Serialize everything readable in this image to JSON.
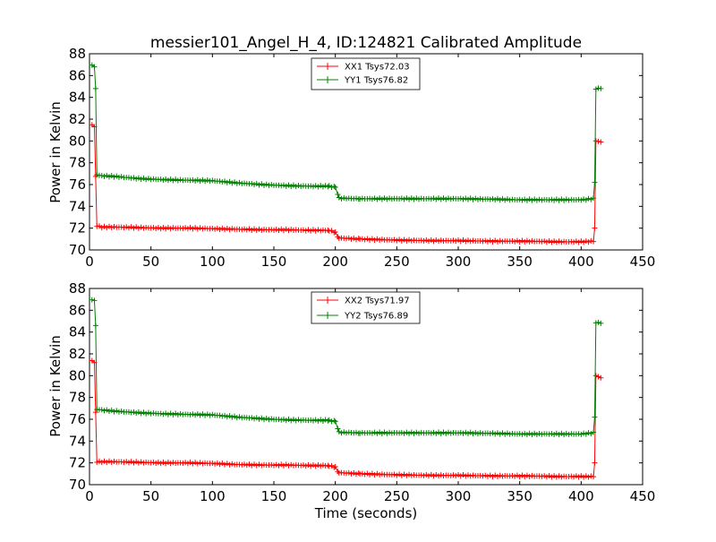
{
  "chart_data": [
    {
      "type": "line",
      "title": "messier101_Angel_H_4, ID:124821 Calibrated Amplitude",
      "xlabel": "",
      "ylabel": "Power in Kelvin",
      "xlim": [
        0,
        450
      ],
      "ylim": [
        70,
        88
      ],
      "x_ticks": [
        "0",
        "50",
        "100",
        "150",
        "200",
        "250",
        "300",
        "350",
        "400",
        "450"
      ],
      "y_ticks": [
        "70",
        "72",
        "74",
        "76",
        "78",
        "80",
        "82",
        "84",
        "86",
        "88"
      ],
      "grid": false,
      "legend_position": "upper-center",
      "series": [
        {
          "name": "XX1 Tsys72.03",
          "color": "#ff0000",
          "points": [
            [
              2,
              81.5
            ],
            [
              4,
              81.3
            ],
            [
              6,
              72.2
            ],
            [
              10,
              72.1
            ],
            [
              20,
              72.1
            ],
            [
              40,
              72.05
            ],
            [
              60,
              72.0
            ],
            [
              80,
              72.0
            ],
            [
              100,
              71.95
            ],
            [
              120,
              71.9
            ],
            [
              140,
              71.85
            ],
            [
              160,
              71.85
            ],
            [
              180,
              71.8
            ],
            [
              195,
              71.8
            ],
            [
              200,
              71.6
            ],
            [
              203,
              71.1
            ],
            [
              220,
              71.0
            ],
            [
              250,
              70.9
            ],
            [
              280,
              70.85
            ],
            [
              300,
              70.85
            ],
            [
              330,
              70.8
            ],
            [
              360,
              70.8
            ],
            [
              380,
              70.75
            ],
            [
              400,
              70.75
            ],
            [
              410,
              70.8
            ],
            [
              411,
              72.0
            ],
            [
              412,
              80.0
            ],
            [
              416,
              79.9
            ]
          ]
        },
        {
          "name": "YY1 Tsys76.82",
          "color": "#008000",
          "points": [
            [
              2,
              87.0
            ],
            [
              4,
              86.8
            ],
            [
              5,
              84.8
            ],
            [
              6,
              76.9
            ],
            [
              10,
              76.8
            ],
            [
              20,
              76.75
            ],
            [
              40,
              76.55
            ],
            [
              60,
              76.45
            ],
            [
              80,
              76.4
            ],
            [
              100,
              76.35
            ],
            [
              120,
              76.15
            ],
            [
              140,
              76.0
            ],
            [
              160,
              75.9
            ],
            [
              180,
              75.85
            ],
            [
              195,
              75.85
            ],
            [
              200,
              75.75
            ],
            [
              203,
              74.75
            ],
            [
              220,
              74.7
            ],
            [
              250,
              74.7
            ],
            [
              280,
              74.7
            ],
            [
              300,
              74.7
            ],
            [
              330,
              74.65
            ],
            [
              350,
              74.6
            ],
            [
              380,
              74.6
            ],
            [
              400,
              74.6
            ],
            [
              410,
              74.7
            ],
            [
              411,
              76.2
            ],
            [
              412,
              84.8
            ],
            [
              416,
              84.8
            ]
          ]
        }
      ]
    },
    {
      "type": "line",
      "title": "",
      "xlabel": "Time (seconds)",
      "ylabel": "Power in Kelvin",
      "xlim": [
        0,
        450
      ],
      "ylim": [
        70,
        88
      ],
      "x_ticks": [
        "0",
        "50",
        "100",
        "150",
        "200",
        "250",
        "300",
        "350",
        "400",
        "450"
      ],
      "y_ticks": [
        "70",
        "72",
        "74",
        "76",
        "78",
        "80",
        "82",
        "84",
        "86",
        "88"
      ],
      "grid": false,
      "legend_position": "upper-center",
      "series": [
        {
          "name": "XX2 Tsys71.97",
          "color": "#ff0000",
          "points": [
            [
              2,
              81.4
            ],
            [
              4,
              81.2
            ],
            [
              6,
              72.1
            ],
            [
              10,
              72.1
            ],
            [
              20,
              72.1
            ],
            [
              40,
              72.05
            ],
            [
              60,
              72.0
            ],
            [
              80,
              72.0
            ],
            [
              100,
              71.95
            ],
            [
              120,
              71.85
            ],
            [
              140,
              71.8
            ],
            [
              160,
              71.8
            ],
            [
              180,
              71.75
            ],
            [
              195,
              71.75
            ],
            [
              200,
              71.6
            ],
            [
              203,
              71.1
            ],
            [
              220,
              71.0
            ],
            [
              250,
              70.9
            ],
            [
              280,
              70.85
            ],
            [
              300,
              70.85
            ],
            [
              330,
              70.8
            ],
            [
              360,
              70.8
            ],
            [
              380,
              70.75
            ],
            [
              400,
              70.75
            ],
            [
              410,
              70.75
            ],
            [
              411,
              72.0
            ],
            [
              412,
              80.0
            ],
            [
              416,
              79.8
            ]
          ]
        },
        {
          "name": "YY2 Tsys76.89",
          "color": "#008000",
          "points": [
            [
              2,
              87.0
            ],
            [
              4,
              86.9
            ],
            [
              5,
              84.6
            ],
            [
              6,
              76.9
            ],
            [
              10,
              76.85
            ],
            [
              20,
              76.75
            ],
            [
              40,
              76.6
            ],
            [
              60,
              76.5
            ],
            [
              80,
              76.45
            ],
            [
              100,
              76.4
            ],
            [
              120,
              76.2
            ],
            [
              140,
              76.05
            ],
            [
              160,
              75.95
            ],
            [
              180,
              75.9
            ],
            [
              195,
              75.9
            ],
            [
              200,
              75.8
            ],
            [
              203,
              74.8
            ],
            [
              220,
              74.75
            ],
            [
              250,
              74.75
            ],
            [
              280,
              74.75
            ],
            [
              300,
              74.75
            ],
            [
              330,
              74.7
            ],
            [
              350,
              74.65
            ],
            [
              380,
              74.65
            ],
            [
              400,
              74.65
            ],
            [
              410,
              74.75
            ],
            [
              411,
              76.2
            ],
            [
              412,
              84.9
            ],
            [
              416,
              84.8
            ]
          ]
        }
      ]
    }
  ]
}
